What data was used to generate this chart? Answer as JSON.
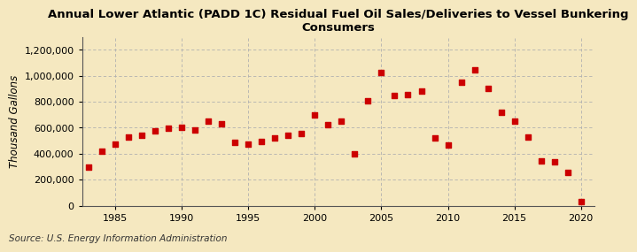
{
  "title": "Annual Lower Atlantic (PADD 1C) Residual Fuel Oil Sales/Deliveries to Vessel Bunkering\nConsumers",
  "ylabel": "Thousand Gallons",
  "source": "Source: U.S. Energy Information Administration",
  "background_color": "#f5e8c0",
  "marker_color": "#cc0000",
  "years": [
    1983,
    1984,
    1985,
    1986,
    1987,
    1988,
    1989,
    1990,
    1991,
    1992,
    1993,
    1994,
    1995,
    1996,
    1997,
    1998,
    1999,
    2000,
    2001,
    2002,
    2003,
    2004,
    2005,
    2006,
    2007,
    2008,
    2009,
    2010,
    2011,
    2012,
    2013,
    2014,
    2015,
    2016,
    2017,
    2018,
    2019,
    2020
  ],
  "values": [
    295000,
    420000,
    475000,
    530000,
    540000,
    575000,
    595000,
    600000,
    580000,
    650000,
    630000,
    490000,
    475000,
    495000,
    520000,
    540000,
    555000,
    700000,
    620000,
    650000,
    400000,
    810000,
    1025000,
    845000,
    855000,
    880000,
    520000,
    470000,
    950000,
    1045000,
    900000,
    720000,
    650000,
    530000,
    345000,
    335000,
    255000,
    30000
  ],
  "xlim": [
    1982.5,
    2021
  ],
  "ylim": [
    0,
    1300000
  ],
  "yticks": [
    0,
    200000,
    400000,
    600000,
    800000,
    1000000,
    1200000
  ],
  "xticks": [
    1985,
    1990,
    1995,
    2000,
    2005,
    2010,
    2015,
    2020
  ],
  "title_fontsize": 9.5,
  "ylabel_fontsize": 8.5,
  "tick_fontsize": 8,
  "source_fontsize": 7.5
}
